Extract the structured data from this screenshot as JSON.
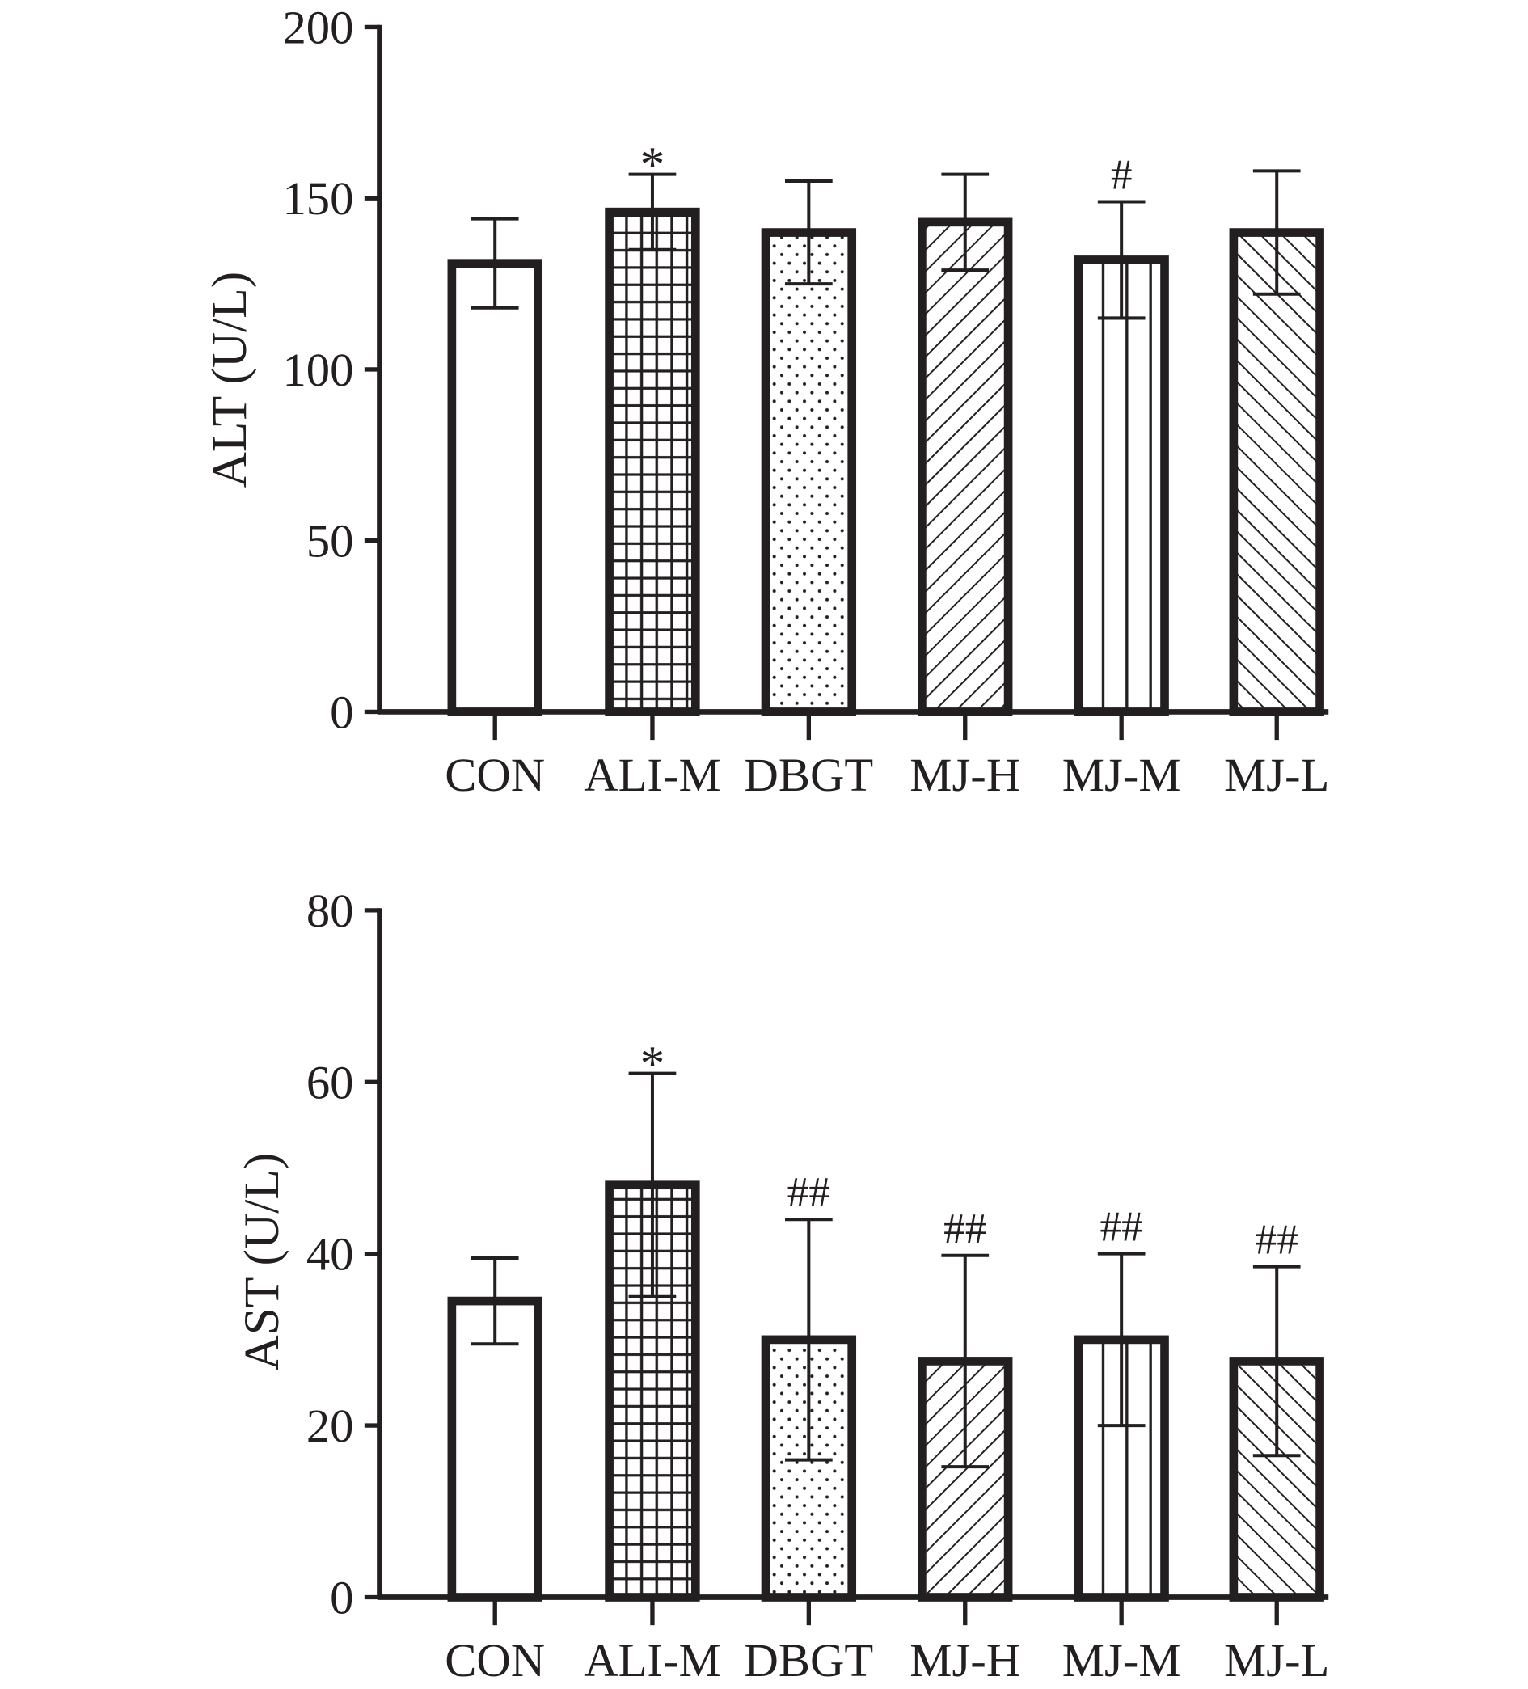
{
  "colors": {
    "ink": "#231f20",
    "background": "#ffffff"
  },
  "chart_data": [
    {
      "type": "bar",
      "title": "",
      "xlabel": "",
      "ylabel": "ALT (U/L)",
      "ylim": [
        0,
        200
      ],
      "yticks": [
        0,
        50,
        100,
        150,
        200
      ],
      "categories": [
        "CON",
        "ALI-M",
        "DBGT",
        "MJ-H",
        "MJ-M",
        "MJ-L"
      ],
      "patterns": [
        "none",
        "grid",
        "dots",
        "diagonal-up",
        "vertical",
        "diagonal-down"
      ],
      "values": [
        131,
        146,
        140,
        143,
        132,
        140
      ],
      "errors": [
        13,
        11,
        15,
        14,
        17,
        18
      ],
      "annotations": [
        "",
        "*",
        "",
        "",
        "#",
        ""
      ],
      "grid": false
    },
    {
      "type": "bar",
      "title": "",
      "xlabel": "",
      "ylabel": "AST (U/L)",
      "ylim": [
        0,
        80
      ],
      "yticks": [
        0,
        20,
        40,
        60,
        80
      ],
      "categories": [
        "CON",
        "ALI-M",
        "DBGT",
        "MJ-H",
        "MJ-M",
        "MJ-L"
      ],
      "patterns": [
        "none",
        "grid",
        "dots",
        "diagonal-up",
        "vertical",
        "diagonal-down"
      ],
      "values": [
        34.5,
        48,
        30,
        27.5,
        30,
        27.5
      ],
      "errors": [
        5,
        13,
        14,
        12.3,
        10,
        11
      ],
      "annotations": [
        "",
        "*",
        "##",
        "##",
        "##",
        "##"
      ],
      "grid": false
    }
  ]
}
